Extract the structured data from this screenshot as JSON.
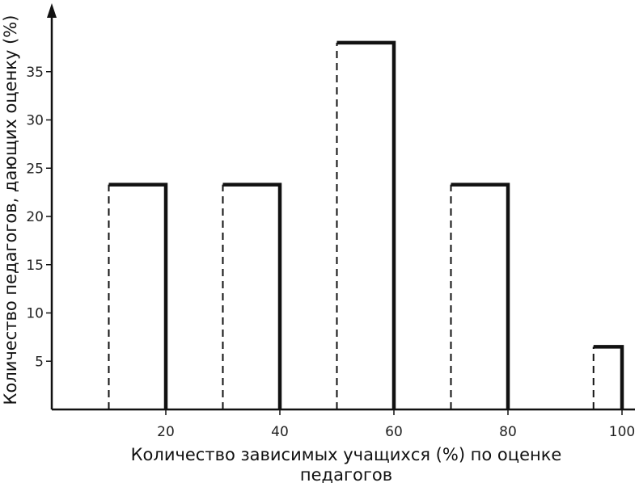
{
  "chart_data": {
    "type": "bar",
    "title": "",
    "xlabel": "Количество зависимых учащихся (%) по оценке педагогов",
    "xlabel_lines": [
      "Количество зависимых учащихся (%) по оценке",
      "педагогов"
    ],
    "ylabel": "Количество педагогов, дающих оценку (%)",
    "x_ticks": [
      20,
      40,
      60,
      80,
      100
    ],
    "y_ticks": [
      5,
      10,
      15,
      20,
      25,
      30,
      35
    ],
    "xlim": [
      0,
      105
    ],
    "ylim": [
      0,
      41
    ],
    "grid": false,
    "bar_style": "left edge dashed, top and right edge solid",
    "bars": [
      {
        "x_start": 10,
        "x_end": 20,
        "value": 23.3
      },
      {
        "x_start": 30,
        "x_end": 40,
        "value": 23.3
      },
      {
        "x_start": 50,
        "x_end": 60,
        "value": 38
      },
      {
        "x_start": 70,
        "x_end": 80,
        "value": 23.3
      },
      {
        "x_start": 95,
        "x_end": 100,
        "value": 6.5
      }
    ]
  }
}
